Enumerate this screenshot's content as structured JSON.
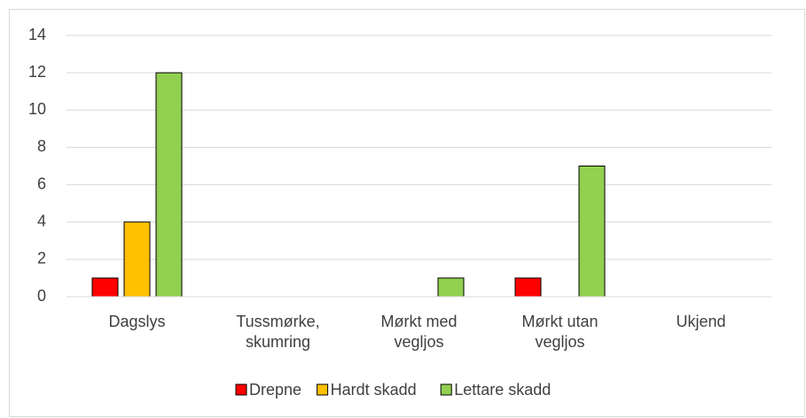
{
  "chart_data": {
    "type": "bar",
    "categories": [
      "Dagslys",
      "Tussmørke, skumring",
      "Mørkt med vegljos",
      "Mørkt utan vegljos",
      "Ukjend"
    ],
    "series": [
      {
        "name": "Drepne",
        "color": "#ff0000",
        "values": [
          1,
          0,
          0,
          1,
          0
        ]
      },
      {
        "name": "Hardt skadd",
        "color": "#ffc000",
        "values": [
          4,
          0,
          0,
          0,
          0
        ]
      },
      {
        "name": "Lettare skadd",
        "color": "#92d050",
        "values": [
          12,
          0,
          1,
          7,
          0
        ]
      }
    ],
    "ylim": [
      0,
      14
    ],
    "yticks": [
      0,
      2,
      4,
      6,
      8,
      10,
      12,
      14
    ],
    "grid": true,
    "legend": "bottom"
  }
}
